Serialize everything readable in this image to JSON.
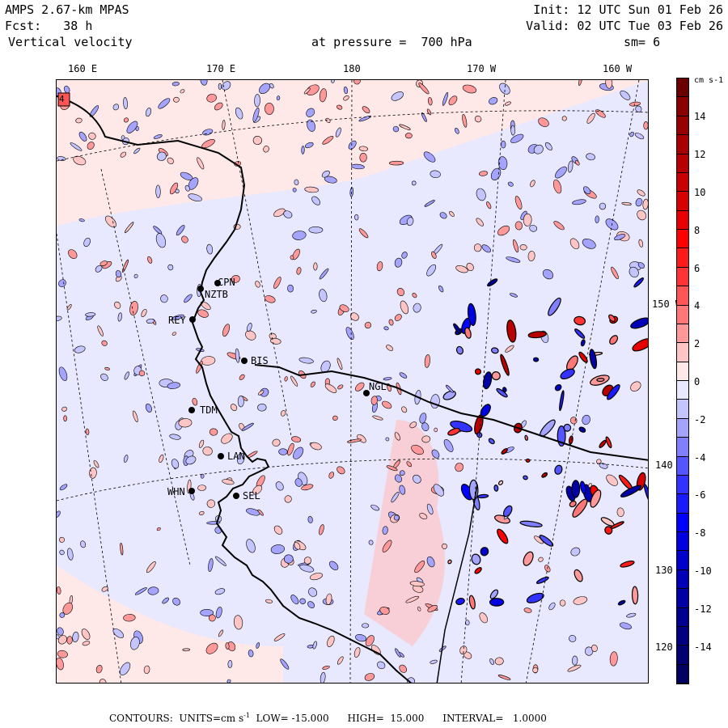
{
  "header": {
    "model": "AMPS 2.67-km MPAS",
    "forecast": "Fcst:   38 h",
    "variable": "Vertical velocity",
    "init": "Init: 12 UTC Sun 01 Feb 26",
    "valid": "Valid: 02 UTC Tue 03 Feb 26",
    "level": "at pressure =  700 hPa",
    "smoothing": "sm= 6"
  },
  "map": {
    "top_lon_labels": [
      "160 E",
      "170 E",
      "180",
      "170 W",
      "160 W"
    ],
    "right_lon_labels": [
      "150 W",
      "140 W",
      "130 W",
      "120 W"
    ],
    "corner_label": "4",
    "stations": [
      "CPN",
      "NZTB",
      "REY",
      "BIS",
      "NGL",
      "TDM",
      "LAN",
      "WHN",
      "SEL"
    ]
  },
  "colorbar": {
    "units": "cm s-1",
    "labels": [
      "14",
      "12",
      "10",
      "8",
      "6",
      "4",
      "2",
      "0",
      "-2",
      "-4",
      "-6",
      "-8",
      "-10",
      "-12",
      "-14"
    ],
    "colors": [
      "#6b0000",
      "#8a0000",
      "#990000",
      "#a80000",
      "#b80000",
      "#c80000",
      "#d80000",
      "#e80000",
      "#ff0000",
      "#ff1a1a",
      "#ff3333",
      "#ff5555",
      "#ff7777",
      "#ff9999",
      "#ffc4c4",
      "#ffe8e8",
      "#e8e8ff",
      "#c4c4ff",
      "#a4a4ff",
      "#8080ff",
      "#5555ff",
      "#3333ff",
      "#1a1aff",
      "#0000ff",
      "#0000e0",
      "#0000cc",
      "#0000b8",
      "#0000a4",
      "#000090",
      "#000080",
      "#000070",
      "#000060"
    ]
  },
  "footer": {
    "contours": "CONTOURS:  UNITS=cm s",
    "sup": "-1",
    "rest": "  LOW= -15.000      HIGH=  15.000      INTERVAL=   1.0000"
  }
}
